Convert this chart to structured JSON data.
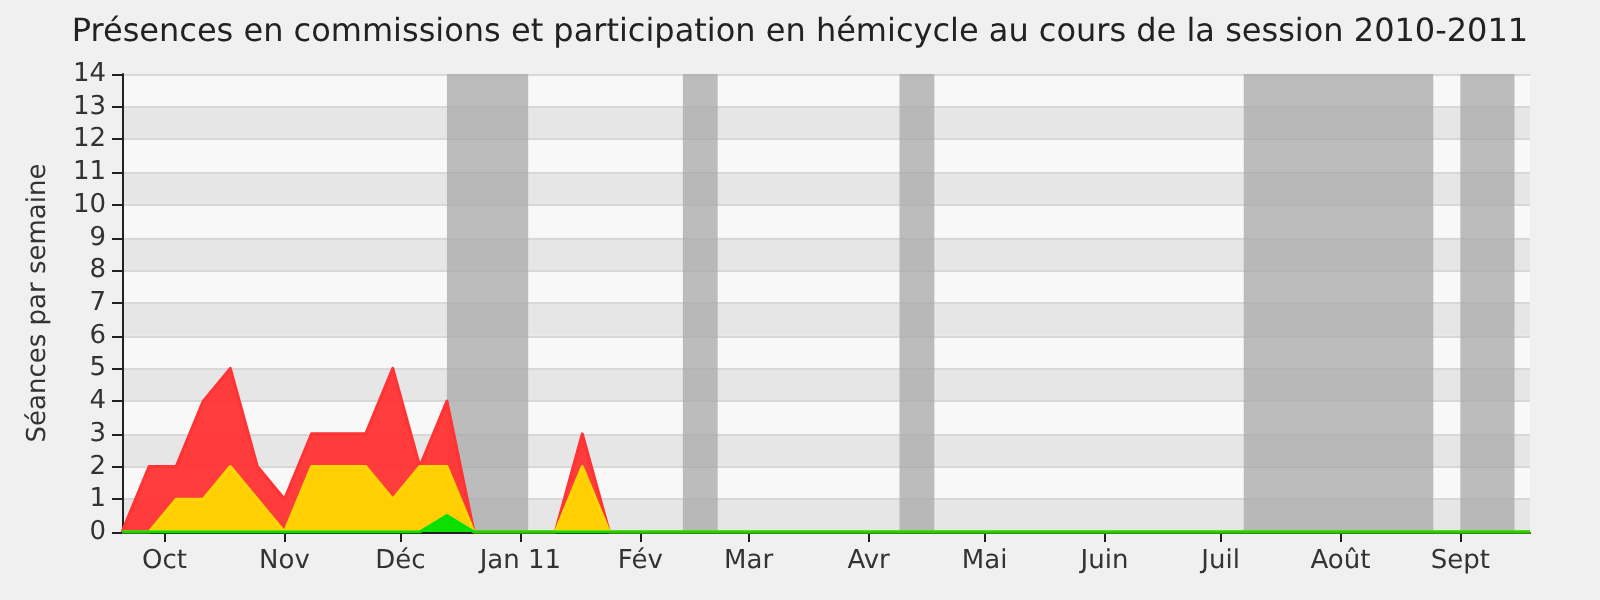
{
  "chart_data": {
    "type": "area",
    "title": "Présences en commissions et participation en hémicycle au cours de la session 2010-2011",
    "ylabel": "Séances par semaine",
    "stacked": true,
    "grid": "y",
    "marker": "none",
    "x": [
      "2010-09-20",
      "2010-09-27",
      "2010-10-04",
      "2010-10-11",
      "2010-10-18",
      "2010-10-25",
      "2010-11-01",
      "2010-11-08",
      "2010-11-15",
      "2010-11-22",
      "2010-11-29",
      "2010-12-06",
      "2010-12-13",
      "2010-12-20",
      "2010-12-27",
      "2011-01-03",
      "2011-01-10",
      "2011-01-17",
      "2011-01-24",
      "2011-01-31",
      "2011-02-07",
      "2011-02-14",
      "2011-02-21",
      "2011-02-28",
      "2011-03-07",
      "2011-03-14",
      "2011-03-21",
      "2011-03-28",
      "2011-04-04",
      "2011-04-11",
      "2011-04-18",
      "2011-04-25",
      "2011-05-02",
      "2011-05-09",
      "2011-05-16",
      "2011-05-23",
      "2011-05-30",
      "2011-06-06",
      "2011-06-13",
      "2011-06-20",
      "2011-06-27",
      "2011-07-04",
      "2011-07-11",
      "2011-07-18",
      "2011-07-25",
      "2011-08-01",
      "2011-08-08",
      "2011-08-15",
      "2011-08-22",
      "2011-08-29",
      "2011-09-05",
      "2011-09-12",
      "2011-09-19"
    ],
    "series": [
      {
        "color": "#00e000",
        "values": [
          0,
          0,
          0,
          0,
          0,
          0,
          0,
          0,
          0,
          0,
          0,
          0,
          0.5,
          0,
          0,
          0,
          0,
          0,
          0,
          0,
          0,
          0,
          0,
          0,
          0,
          0,
          0,
          0,
          0,
          0,
          0,
          0,
          0,
          0,
          0,
          0,
          0,
          0,
          0,
          0,
          0,
          0,
          0,
          0,
          0,
          0,
          0,
          0,
          0,
          0,
          0,
          0,
          0
        ]
      },
      {
        "color": "#ffd700",
        "values": [
          0,
          0,
          1,
          1,
          2,
          1,
          0,
          2,
          2,
          2,
          1,
          2,
          1.5,
          0,
          0,
          0,
          0,
          2,
          0,
          0,
          0,
          0,
          0,
          0,
          0,
          0,
          0,
          0,
          0,
          0,
          0,
          0,
          0,
          0,
          0,
          0,
          0,
          0,
          0,
          0,
          0,
          0,
          0,
          0,
          0,
          0,
          0,
          0,
          0,
          0,
          0,
          0,
          0
        ]
      },
      {
        "color": "#ff3333",
        "values": [
          0,
          2,
          1,
          3,
          3,
          1,
          1,
          1,
          1,
          1,
          4,
          0,
          2,
          0,
          0,
          0,
          0,
          1,
          0,
          0,
          0,
          0,
          0,
          0,
          0,
          0,
          0,
          0,
          0,
          0,
          0,
          0,
          0,
          0,
          0,
          0,
          0,
          0,
          0,
          0,
          0,
          0,
          0,
          0,
          0,
          0,
          0,
          0,
          0,
          0,
          0,
          0,
          0
        ]
      }
    ],
    "xlim": [
      "2010-09-20",
      "2011-09-19"
    ],
    "xticks": [
      {
        "value": "2010-10-01",
        "label": "Oct"
      },
      {
        "value": "2010-11-01",
        "label": "Nov"
      },
      {
        "value": "2010-12-01",
        "label": "Déc"
      },
      {
        "value": "2011-01-01",
        "label": "Jan 11"
      },
      {
        "value": "2011-02-01",
        "label": "Fév"
      },
      {
        "value": "2011-03-01",
        "label": "Mar"
      },
      {
        "value": "2011-04-01",
        "label": "Avr"
      },
      {
        "value": "2011-05-01",
        "label": "Mai"
      },
      {
        "value": "2011-06-01",
        "label": "Juin"
      },
      {
        "value": "2011-07-01",
        "label": "Juil"
      },
      {
        "value": "2011-08-01",
        "label": "Août"
      },
      {
        "value": "2011-09-01",
        "label": "Sept"
      }
    ],
    "ylim": [
      0,
      14
    ],
    "yticks": [
      0,
      1,
      2,
      3,
      4,
      5,
      6,
      7,
      8,
      9,
      10,
      11,
      12,
      13,
      14
    ],
    "bands": [
      {
        "axis": "x",
        "from": "2010-12-13",
        "to": "2011-01-03",
        "color": "#a8a8a8"
      },
      {
        "axis": "x",
        "from": "2011-02-12",
        "to": "2011-02-21",
        "color": "#a8a8a8"
      },
      {
        "axis": "x",
        "from": "2011-04-09",
        "to": "2011-04-18",
        "color": "#a8a8a8"
      },
      {
        "axis": "x",
        "from": "2011-07-07",
        "to": "2011-08-25",
        "color": "#a8a8a8"
      },
      {
        "axis": "x",
        "from": "2011-09-01",
        "to": "2011-09-15",
        "color": "#a8a8a8"
      }
    ]
  }
}
